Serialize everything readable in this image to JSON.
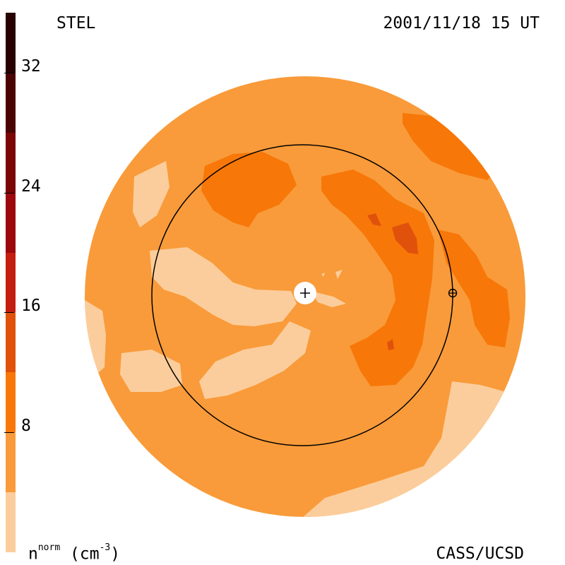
{
  "header": {
    "instrument": "STEL",
    "timestamp": "2001/11/18 15 UT"
  },
  "footer": {
    "credit": "CASS/UCSD",
    "unit_base": "n",
    "unit_sup": "norm",
    "unit_rest": " (cm",
    "unit_exp": "-3",
    "unit_close": ")"
  },
  "chart_data": {
    "type": "heatmap",
    "title": "",
    "colorbar": {
      "range": [
        0,
        36
      ],
      "ticks": [
        "8",
        "16",
        "24",
        "32"
      ],
      "tick_values": [
        8,
        16,
        24,
        32
      ],
      "levels": [
        {
          "from": 0,
          "to": 4,
          "color": "#fccd9c"
        },
        {
          "from": 4,
          "to": 8,
          "color": "#f99b3a"
        },
        {
          "from": 8,
          "to": 12,
          "color": "#f77709"
        },
        {
          "from": 12,
          "to": 16,
          "color": "#e0520b"
        },
        {
          "from": 16,
          "to": 20,
          "color": "#c41e10"
        },
        {
          "from": 20,
          "to": 24,
          "color": "#9c080b"
        },
        {
          "from": 24,
          "to": 28,
          "color": "#7a0606"
        },
        {
          "from": 28,
          "to": 32,
          "color": "#4a0303"
        },
        {
          "from": 32,
          "to": 36,
          "color": "#280101"
        }
      ]
    },
    "sun_marker": "+",
    "earth_marker": "⊕",
    "earth_orbit_shown": true
  }
}
